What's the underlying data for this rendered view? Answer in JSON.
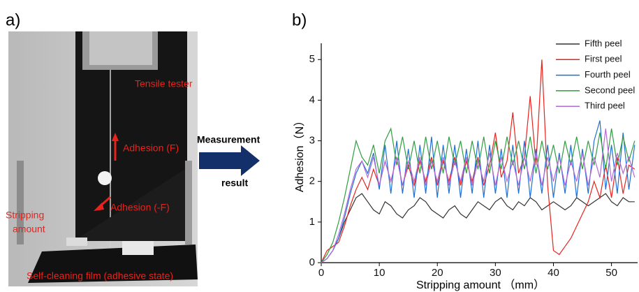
{
  "panel_a": {
    "label": "a)",
    "annotations": [
      "Tensile tester",
      "Adhesion (F)",
      "Adhesion (-F)",
      "Stripping",
      "amount",
      "Self-cleaning film (adhesive state)"
    ]
  },
  "arrow_text": [
    "Measurement",
    "result"
  ],
  "chart_data": {
    "type": "line",
    "panel_label": "b)",
    "x_label": "Stripping amount （mm）",
    "y_label": "Adhesion（N）",
    "x": [
      0,
      1,
      2,
      3,
      4,
      5,
      6,
      7,
      8,
      9,
      10,
      11,
      12,
      13,
      14,
      15,
      16,
      17,
      18,
      19,
      20,
      21,
      22,
      23,
      24,
      25,
      26,
      27,
      28,
      29,
      30,
      31,
      32,
      33,
      34,
      35,
      36,
      37,
      38,
      39,
      40,
      41,
      42,
      43,
      44,
      45,
      46,
      47,
      48,
      49,
      50,
      51,
      52,
      53,
      54
    ],
    "series": [
      {
        "name": "Fifth peel",
        "color": "#333333",
        "values": [
          0,
          0.1,
          0.3,
          0.6,
          1.0,
          1.3,
          1.6,
          1.7,
          1.5,
          1.3,
          1.2,
          1.5,
          1.4,
          1.2,
          1.1,
          1.3,
          1.4,
          1.6,
          1.5,
          1.3,
          1.2,
          1.1,
          1.3,
          1.4,
          1.2,
          1.1,
          1.3,
          1.5,
          1.4,
          1.3,
          1.5,
          1.6,
          1.4,
          1.3,
          1.5,
          1.4,
          1.6,
          1.5,
          1.3,
          1.4,
          1.5,
          1.4,
          1.3,
          1.4,
          1.6,
          1.5,
          1.4,
          1.5,
          1.6,
          1.7,
          1.5,
          1.4,
          1.6,
          1.5,
          1.5
        ]
      },
      {
        "name": "First peel",
        "color": "#e8231d",
        "values": [
          0,
          0.3,
          0.4,
          0.5,
          0.9,
          1.4,
          1.8,
          2.1,
          1.8,
          2.3,
          1.9,
          2.5,
          2.0,
          2.6,
          1.9,
          2.4,
          1.9,
          2.5,
          2.0,
          2.6,
          1.9,
          2.5,
          2.0,
          2.6,
          1.9,
          2.5,
          2.0,
          2.6,
          1.9,
          2.4,
          3.2,
          2.1,
          2.5,
          3.7,
          2.2,
          2.6,
          4.1,
          2.4,
          5.0,
          1.9,
          0.3,
          0.2,
          0.4,
          0.6,
          0.9,
          1.2,
          1.5,
          2.0,
          1.6,
          2.4,
          1.6,
          2.6,
          1.7,
          2.4,
          2.3
        ]
      },
      {
        "name": "Fourth peel",
        "color": "#1f6fd6",
        "values": [
          0,
          0.1,
          0.3,
          0.6,
          1.1,
          1.7,
          2.2,
          2.5,
          2.2,
          2.7,
          1.8,
          2.9,
          1.7,
          3.0,
          1.7,
          2.8,
          1.6,
          2.9,
          1.7,
          3.1,
          1.6,
          2.9,
          1.7,
          2.9,
          1.6,
          2.8,
          1.7,
          3.0,
          1.6,
          2.9,
          1.7,
          2.8,
          1.6,
          2.9,
          1.7,
          3.0,
          1.6,
          2.8,
          1.7,
          2.9,
          1.6,
          2.7,
          1.7,
          2.9,
          1.6,
          2.8,
          1.7,
          3.0,
          3.5,
          1.8,
          2.9,
          1.7,
          3.2,
          1.8,
          2.9
        ]
      },
      {
        "name": "Second peel",
        "color": "#2e9e3e",
        "values": [
          0,
          0.2,
          0.5,
          1.0,
          1.6,
          2.3,
          3.0,
          2.6,
          2.4,
          2.9,
          2.2,
          3.0,
          3.3,
          2.4,
          3.1,
          2.3,
          3.0,
          2.2,
          3.1,
          2.3,
          3.0,
          2.2,
          3.1,
          2.4,
          3.0,
          2.2,
          3.0,
          2.3,
          3.1,
          2.2,
          3.0,
          2.3,
          3.1,
          2.4,
          3.0,
          2.3,
          3.1,
          2.2,
          3.0,
          2.3,
          2.9,
          2.2,
          3.0,
          2.4,
          3.1,
          2.3,
          3.0,
          2.4,
          3.2,
          2.3,
          3.3,
          2.4,
          3.1,
          2.5,
          3.0
        ]
      },
      {
        "name": "Third peel",
        "color": "#b36ad9",
        "values": [
          0,
          0.1,
          0.3,
          0.7,
          1.2,
          1.8,
          2.3,
          2.5,
          2.1,
          2.6,
          1.9,
          2.5,
          2.0,
          2.6,
          1.9,
          2.5,
          2.0,
          2.6,
          1.9,
          2.5,
          2.0,
          2.6,
          1.9,
          2.5,
          2.0,
          2.6,
          1.9,
          2.5,
          2.0,
          2.7,
          1.9,
          2.6,
          2.0,
          2.5,
          1.9,
          2.6,
          2.0,
          2.7,
          1.9,
          2.6,
          2.0,
          2.6,
          1.9,
          2.5,
          2.0,
          2.7,
          1.9,
          2.6,
          2.1,
          3.3,
          2.0,
          2.7,
          2.2,
          2.6,
          2.1
        ]
      }
    ],
    "xlim": [
      0,
      54.5
    ],
    "ylim": [
      0,
      5.4
    ],
    "xticks": [
      0,
      10,
      20,
      30,
      40,
      50
    ],
    "yticks": [
      0,
      1,
      2,
      3,
      4,
      5
    ],
    "legend": "upper right"
  }
}
